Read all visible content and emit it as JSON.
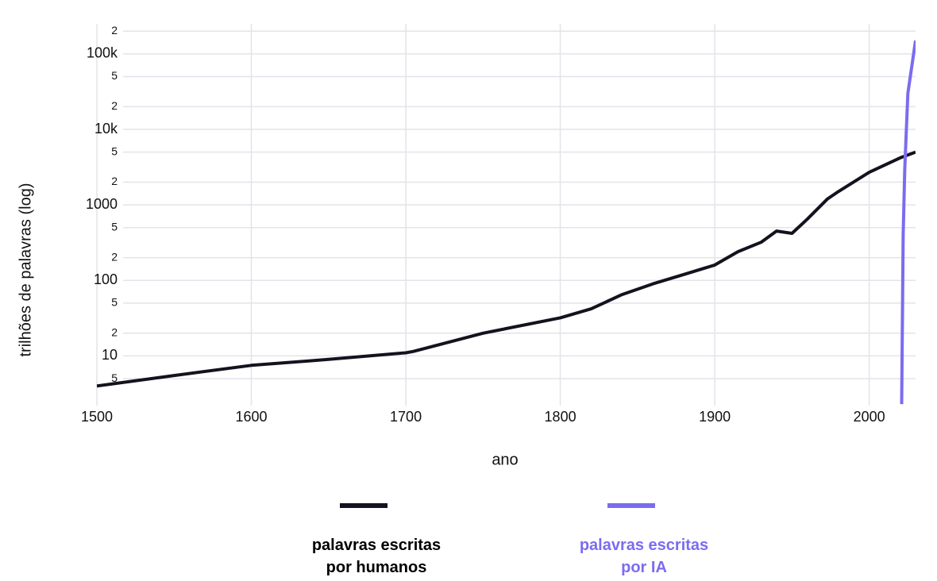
{
  "chart_data": {
    "type": "line",
    "x_label": "ano",
    "y_label": "trilhões de palavras (log)",
    "log_y": true,
    "grid": true,
    "xlim": [
      1500,
      2030
    ],
    "xticks": [
      1500,
      1600,
      1700,
      1800,
      1900,
      2000
    ],
    "ylim": [
      2.2,
      250000
    ],
    "yticks": [
      5,
      10,
      {
        "value": 20,
        "label": "2"
      },
      {
        "value": 50,
        "label": "5"
      },
      100,
      {
        "value": 200,
        "label": "2"
      },
      {
        "value": 500,
        "label": "5"
      },
      1000,
      {
        "value": 2000,
        "label": "2"
      },
      {
        "value": 5000,
        "label": "5"
      },
      {
        "value": 10000,
        "label": "10k"
      },
      {
        "value": 20000,
        "label": "2"
      },
      {
        "value": 50000,
        "label": "5"
      },
      {
        "value": 100000,
        "label": "100k"
      },
      {
        "value": 200000,
        "label": "2"
      }
    ],
    "series": [
      {
        "name": "palavras escritas por humanos",
        "color": "#15121f",
        "x": [
          1500,
          1550,
          1600,
          1650,
          1700,
          1705,
          1750,
          1800,
          1820,
          1840,
          1860,
          1880,
          1900,
          1915,
          1930,
          1940,
          1950,
          1960,
          1973,
          1980,
          2000,
          2020,
          2030
        ],
        "values": [
          4,
          5.5,
          7.5,
          9,
          11,
          11.5,
          20,
          32,
          42,
          65,
          90,
          120,
          160,
          240,
          320,
          450,
          420,
          650,
          1200,
          1500,
          2700,
          4200,
          5000
        ]
      },
      {
        "name": "palavras escritas por IA",
        "color": "#7b6cf0",
        "x": [
          2021,
          2022,
          2023,
          2025,
          2030
        ],
        "values": [
          2.3,
          400,
          3000,
          30000,
          150000
        ]
      }
    ]
  }
}
